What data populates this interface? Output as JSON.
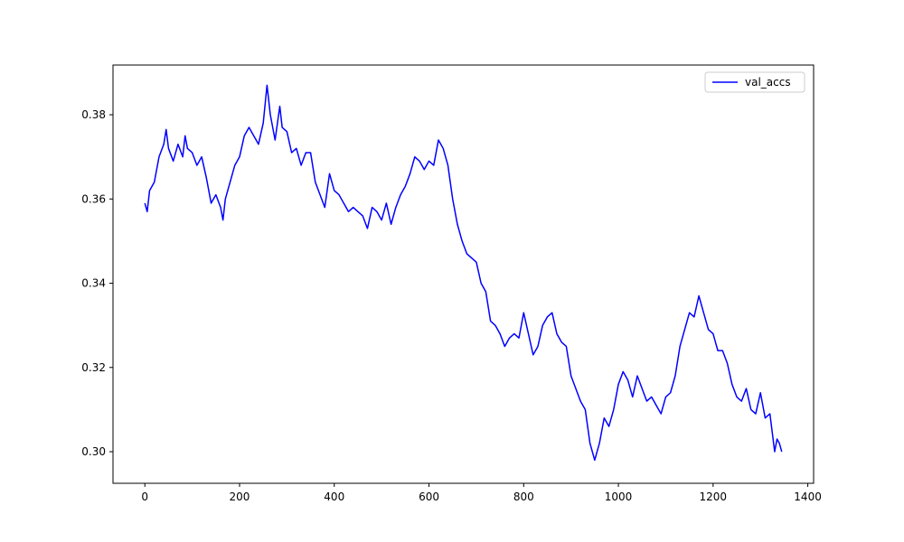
{
  "chart_data": {
    "type": "line",
    "x": [
      0,
      5,
      10,
      20,
      30,
      40,
      45,
      50,
      60,
      70,
      80,
      85,
      90,
      100,
      110,
      120,
      130,
      140,
      150,
      160,
      165,
      170,
      180,
      190,
      200,
      210,
      220,
      230,
      240,
      250,
      258,
      265,
      275,
      285,
      290,
      300,
      310,
      320,
      330,
      340,
      350,
      360,
      370,
      380,
      390,
      400,
      410,
      420,
      430,
      440,
      450,
      460,
      470,
      480,
      490,
      500,
      510,
      520,
      530,
      540,
      550,
      560,
      570,
      580,
      590,
      600,
      610,
      620,
      630,
      640,
      650,
      660,
      670,
      680,
      690,
      700,
      710,
      720,
      730,
      740,
      750,
      760,
      770,
      780,
      790,
      800,
      810,
      820,
      830,
      840,
      850,
      860,
      870,
      880,
      890,
      900,
      910,
      920,
      930,
      940,
      950,
      960,
      970,
      980,
      990,
      1000,
      1010,
      1020,
      1030,
      1040,
      1050,
      1060,
      1070,
      1080,
      1090,
      1100,
      1110,
      1120,
      1130,
      1140,
      1150,
      1160,
      1170,
      1180,
      1190,
      1200,
      1210,
      1220,
      1230,
      1240,
      1250,
      1260,
      1270,
      1280,
      1290,
      1300,
      1310,
      1320,
      1330,
      1335,
      1340,
      1345
    ],
    "series": [
      {
        "name": "val_accs",
        "color": "#0000ff",
        "values": [
          0.359,
          0.357,
          0.362,
          0.364,
          0.37,
          0.373,
          0.3765,
          0.372,
          0.369,
          0.373,
          0.37,
          0.375,
          0.372,
          0.371,
          0.368,
          0.37,
          0.365,
          0.359,
          0.361,
          0.358,
          0.355,
          0.36,
          0.364,
          0.368,
          0.37,
          0.375,
          0.377,
          0.375,
          0.373,
          0.378,
          0.387,
          0.38,
          0.374,
          0.382,
          0.377,
          0.376,
          0.371,
          0.372,
          0.368,
          0.371,
          0.371,
          0.364,
          0.361,
          0.358,
          0.366,
          0.362,
          0.361,
          0.359,
          0.357,
          0.358,
          0.357,
          0.356,
          0.353,
          0.358,
          0.357,
          0.355,
          0.359,
          0.354,
          0.358,
          0.361,
          0.363,
          0.366,
          0.37,
          0.369,
          0.367,
          0.369,
          0.368,
          0.374,
          0.372,
          0.368,
          0.36,
          0.354,
          0.35,
          0.347,
          0.346,
          0.345,
          0.34,
          0.338,
          0.331,
          0.33,
          0.328,
          0.325,
          0.327,
          0.328,
          0.327,
          0.333,
          0.328,
          0.323,
          0.325,
          0.33,
          0.332,
          0.333,
          0.328,
          0.326,
          0.325,
          0.318,
          0.315,
          0.312,
          0.31,
          0.302,
          0.298,
          0.302,
          0.308,
          0.306,
          0.31,
          0.316,
          0.319,
          0.317,
          0.313,
          0.318,
          0.315,
          0.312,
          0.313,
          0.311,
          0.309,
          0.313,
          0.314,
          0.318,
          0.325,
          0.329,
          0.333,
          0.332,
          0.337,
          0.333,
          0.329,
          0.328,
          0.324,
          0.324,
          0.321,
          0.316,
          0.313,
          0.312,
          0.315,
          0.31,
          0.309,
          0.314,
          0.308,
          0.309,
          0.3,
          0.303,
          0.302,
          0.3
        ]
      }
    ],
    "xlim": [
      -67.25,
      1412.25
    ],
    "xticks": [
      0,
      200,
      400,
      600,
      800,
      1000,
      1200,
      1400
    ],
    "ylim": [
      0.2925,
      0.3918
    ],
    "yticks": [
      {
        "value": 0.3,
        "label": "0.30"
      },
      0.32,
      0.34,
      0.36,
      0.38
    ],
    "legend": "upper right"
  }
}
